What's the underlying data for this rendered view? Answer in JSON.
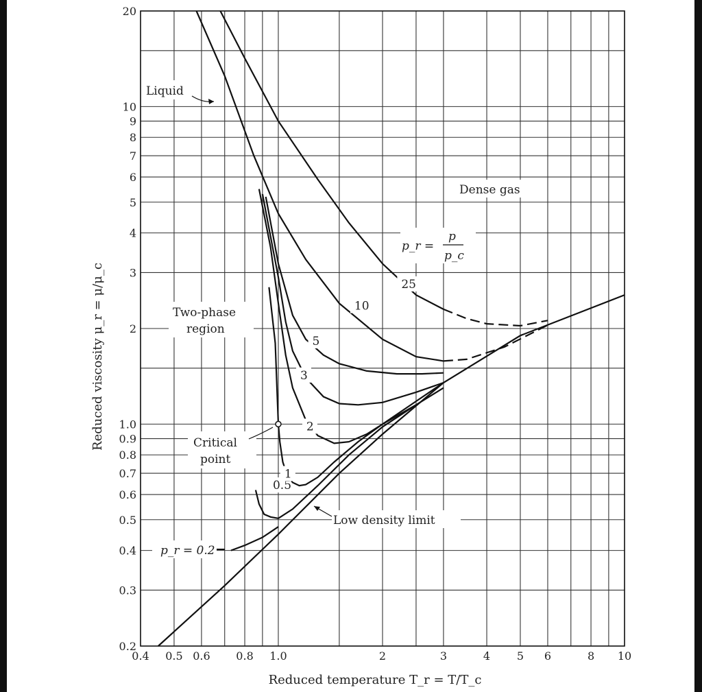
{
  "chart_data": {
    "type": "line",
    "title": "",
    "xlabel": "Reduced temperature T_r = T/T_c",
    "ylabel": "Reduced viscosity μ_r = μ/μ_c",
    "x_scale": "log",
    "y_scale": "log",
    "xlim": [
      0.4,
      10
    ],
    "ylim": [
      0.2,
      20
    ],
    "grid": true,
    "x_tick_labels": [
      "0.4",
      "0.5",
      "0.6",
      "0.8",
      "1.0",
      "2",
      "3",
      "4",
      "5",
      "6",
      "8",
      "10"
    ],
    "y_tick_labels": [
      "0.2",
      "0.3",
      "0.4",
      "0.5",
      "0.6",
      "0.7",
      "0.8",
      "0.9",
      "1.0",
      "2",
      "3",
      "4",
      "5",
      "6",
      "7",
      "8",
      "9",
      "10",
      "20"
    ],
    "series": [
      {
        "name": "Low density limit",
        "x": [
          0.45,
          0.7,
          1.0,
          1.5,
          2.0,
          3.0,
          5.0,
          10.0
        ],
        "y": [
          0.2,
          0.31,
          0.45,
          0.7,
          0.93,
          1.35,
          1.9,
          2.55
        ]
      },
      {
        "name": "0.2",
        "x": [
          0.73,
          0.8,
          0.9,
          1.0
        ],
        "y": [
          0.4,
          0.415,
          0.44,
          0.475
        ]
      },
      {
        "name": "0.5",
        "x": [
          0.86,
          0.88,
          0.91,
          0.95,
          1.0,
          1.1,
          1.3,
          1.6,
          2.0,
          2.5
        ],
        "y": [
          0.62,
          0.56,
          0.52,
          0.51,
          0.505,
          0.54,
          0.64,
          0.8,
          0.98,
          1.15
        ]
      },
      {
        "name": "1",
        "x": [
          0.94,
          0.98,
          1.0,
          1.01,
          1.03,
          1.06,
          1.1,
          1.15,
          1.2,
          1.3,
          1.45,
          1.7,
          2.0,
          2.5,
          3.0
        ],
        "y": [
          2.7,
          1.8,
          1.0,
          0.88,
          0.76,
          0.69,
          0.655,
          0.64,
          0.645,
          0.68,
          0.76,
          0.88,
          1.0,
          1.15,
          1.3
        ]
      },
      {
        "name": "2",
        "x": [
          0.88,
          0.95,
          1.0,
          1.05,
          1.1,
          1.2,
          1.3,
          1.45,
          1.6,
          1.8,
          2.0,
          2.5,
          3.0
        ],
        "y": [
          5.5,
          3.6,
          2.4,
          1.65,
          1.3,
          1.03,
          0.92,
          0.87,
          0.88,
          0.93,
          1.0,
          1.18,
          1.35
        ]
      },
      {
        "name": "3",
        "x": [
          0.9,
          1.0,
          1.05,
          1.1,
          1.2,
          1.35,
          1.5,
          1.7,
          2.0,
          2.5,
          3.0
        ],
        "y": [
          5.3,
          2.9,
          2.1,
          1.7,
          1.4,
          1.22,
          1.16,
          1.15,
          1.17,
          1.26,
          1.35
        ]
      },
      {
        "name": "5",
        "x": [
          0.92,
          1.0,
          1.1,
          1.2,
          1.35,
          1.5,
          1.8,
          2.2,
          2.6,
          3.0
        ],
        "y": [
          5.2,
          3.2,
          2.2,
          1.85,
          1.65,
          1.55,
          1.47,
          1.44,
          1.44,
          1.45
        ]
      },
      {
        "name": "10",
        "x": [
          0.58,
          0.7,
          0.85,
          1.0,
          1.2,
          1.5,
          2.0,
          2.5,
          3.0,
          3.5,
          4.5,
          6.0
        ],
        "y": [
          20,
          12.5,
          7.0,
          4.6,
          3.3,
          2.4,
          1.85,
          1.63,
          1.58,
          1.6,
          1.75,
          2.05
        ]
      },
      {
        "name": "25",
        "x": [
          0.68,
          0.8,
          1.0,
          1.3,
          1.6,
          2.0,
          2.5,
          3.0,
          3.5,
          4.0,
          5.0,
          6.0
        ],
        "y": [
          20,
          14.2,
          9.0,
          5.9,
          4.3,
          3.2,
          2.55,
          2.3,
          2.15,
          2.07,
          2.04,
          2.12
        ]
      }
    ],
    "critical_point": {
      "x": 1.0,
      "y": 1.0
    }
  },
  "annotations": {
    "liquid": "Liquid",
    "dense_gas": "Dense gas",
    "two_phase_line1": "Two-phase",
    "two_phase_line2": "region",
    "critical_line1": "Critical",
    "critical_line2": "point",
    "low_density": "Low density limit",
    "pr_def_lhs": "p_r =",
    "pr_def_num": "p",
    "pr_def_den": "p_c",
    "pr_label": "p_r = 0.2"
  }
}
